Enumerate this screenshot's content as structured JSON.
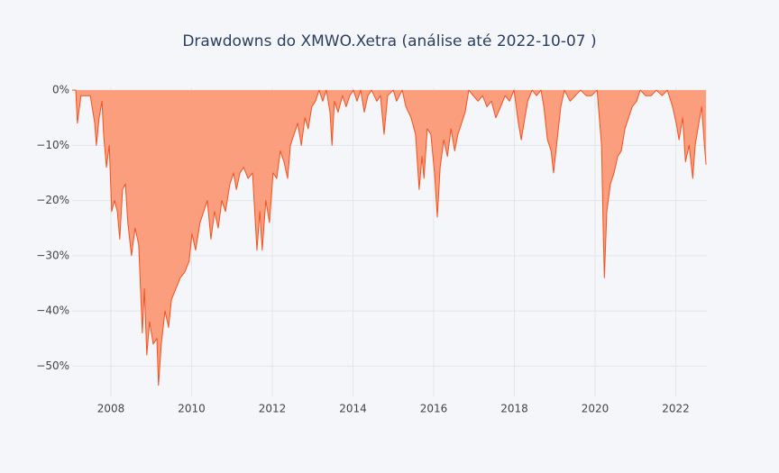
{
  "chart_data": {
    "type": "area",
    "title": "Drawdowns do XMWO.Xetra (análise até 2022-10-07 )",
    "x": [
      2007.04,
      2007.13,
      2007.17,
      2007.26,
      2007.49,
      2007.6,
      2007.64,
      2007.71,
      2007.78,
      2007.82,
      2007.89,
      2007.96,
      2008.02,
      2008.09,
      2008.16,
      2008.22,
      2008.29,
      2008.36,
      2008.42,
      2008.51,
      2008.6,
      2008.69,
      2008.78,
      2008.83,
      2008.89,
      2008.96,
      2009.05,
      2009.14,
      2009.18,
      2009.25,
      2009.34,
      2009.43,
      2009.5,
      2009.61,
      2009.72,
      2009.83,
      2009.94,
      2010.01,
      2010.1,
      2010.21,
      2010.3,
      2010.39,
      2010.48,
      2010.57,
      2010.66,
      2010.75,
      2010.84,
      2010.95,
      2011.04,
      2011.11,
      2011.2,
      2011.29,
      2011.4,
      2011.51,
      2011.62,
      2011.69,
      2011.75,
      2011.84,
      2011.93,
      2012.02,
      2012.11,
      2012.2,
      2012.29,
      2012.38,
      2012.45,
      2012.54,
      2012.63,
      2012.72,
      2012.81,
      2012.89,
      2012.98,
      2013.07,
      2013.16,
      2013.25,
      2013.34,
      2013.43,
      2013.48,
      2013.54,
      2013.63,
      2013.74,
      2013.83,
      2013.92,
      2014.01,
      2014.1,
      2014.19,
      2014.28,
      2014.37,
      2014.46,
      2014.59,
      2014.68,
      2014.77,
      2014.86,
      2015.0,
      2015.08,
      2015.22,
      2015.31,
      2015.44,
      2015.55,
      2015.64,
      2015.71,
      2015.76,
      2015.84,
      2015.93,
      2016.02,
      2016.09,
      2016.16,
      2016.25,
      2016.34,
      2016.43,
      2016.52,
      2016.6,
      2016.69,
      2016.78,
      2016.87,
      2016.98,
      2017.1,
      2017.21,
      2017.32,
      2017.43,
      2017.54,
      2017.66,
      2017.77,
      2017.88,
      2017.99,
      2018.1,
      2018.17,
      2018.26,
      2018.33,
      2018.44,
      2018.55,
      2018.66,
      2018.73,
      2018.82,
      2018.91,
      2018.97,
      2019.06,
      2019.15,
      2019.24,
      2019.38,
      2019.51,
      2019.64,
      2019.78,
      2019.91,
      2020.05,
      2020.16,
      2020.2,
      2020.23,
      2020.29,
      2020.38,
      2020.47,
      2020.56,
      2020.65,
      2020.74,
      2020.83,
      2020.92,
      2021.03,
      2021.12,
      2021.25,
      2021.39,
      2021.52,
      2021.66,
      2021.79,
      2021.92,
      2022.01,
      2022.08,
      2022.17,
      2022.24,
      2022.33,
      2022.42,
      2022.48,
      2022.57,
      2022.64,
      2022.71,
      2022.75
    ],
    "values": [
      0,
      0,
      -6,
      -1,
      -1,
      -6,
      -10,
      -5,
      -2,
      -8,
      -14,
      -10,
      -22,
      -20,
      -22,
      -27,
      -18,
      -17,
      -24,
      -30,
      -25,
      -28,
      -44,
      -36,
      -48,
      -42,
      -46,
      -45,
      -53.5,
      -46,
      -40,
      -43,
      -38,
      -36,
      -34,
      -33,
      -31,
      -26,
      -29,
      -24,
      -22,
      -20,
      -27,
      -22,
      -25,
      -20,
      -22,
      -17,
      -15,
      -18,
      -15,
      -14,
      -16,
      -15,
      -29,
      -22,
      -29,
      -20,
      -24,
      -15,
      -16,
      -11,
      -13,
      -16,
      -10,
      -8,
      -6,
      -10,
      -5,
      -7,
      -3,
      -2,
      0,
      -2,
      0,
      -4,
      -10,
      -2,
      -4,
      -1,
      -3,
      -1,
      0,
      -2,
      0,
      -4,
      -1,
      0,
      -2,
      -1,
      -8,
      -1,
      0,
      -2,
      0,
      -3,
      -5,
      -8,
      -18,
      -12,
      -16,
      -7,
      -8,
      -15,
      -23,
      -14,
      -9,
      -12,
      -7,
      -11,
      -8,
      -6,
      -4,
      0,
      -1,
      -2,
      -1,
      -3,
      -2,
      -5,
      -3,
      -1,
      -2,
      0,
      -6,
      -9,
      -5,
      -2,
      0,
      -1,
      0,
      -3,
      -9,
      -11,
      -15,
      -9,
      -3,
      0,
      -2,
      -1,
      0,
      -1,
      -1,
      0,
      -10,
      -25,
      -34,
      -22,
      -17,
      -15,
      -12,
      -11,
      -7,
      -5,
      -3,
      -2,
      0,
      -1,
      -1,
      0,
      -1,
      0,
      -3,
      -6,
      -9,
      -5,
      -13,
      -10,
      -16,
      -10,
      -6,
      -3,
      -10,
      -13.5
    ],
    "color": "#f4511e",
    "fill_color": "#fb9e7e",
    "xlim": [
      2007.04,
      2022.77
    ],
    "xticks": [
      2008,
      2010,
      2012,
      2014,
      2016,
      2018,
      2020,
      2022
    ],
    "ylim": [
      -55.5,
      0.5
    ],
    "yticks": [
      {
        "value": 0,
        "label": "0%"
      },
      {
        "value": -10,
        "label": "−10%"
      },
      {
        "value": -20,
        "label": "−20%"
      },
      {
        "value": -30,
        "label": "−30%"
      },
      {
        "value": -40,
        "label": "−40%"
      },
      {
        "value": -50,
        "label": "−50%"
      }
    ],
    "grid": true
  }
}
